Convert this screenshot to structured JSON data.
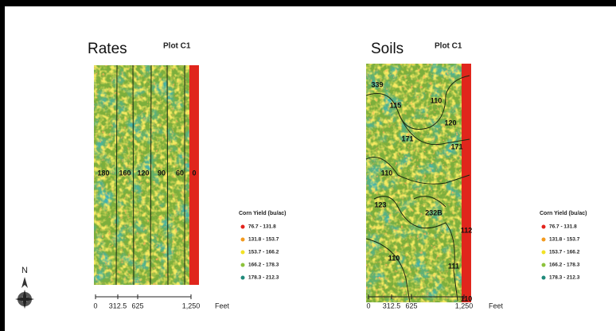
{
  "north": "N",
  "maps": [
    {
      "title": "Rates",
      "plot": "Plot C1",
      "zone_labels": [
        "180",
        "160",
        "120",
        "90",
        "60",
        "0"
      ],
      "scale": {
        "ticks": [
          "0",
          "312.5",
          "625",
          "1,250"
        ],
        "unit": "Feet"
      },
      "legend": {
        "title": "Corn Yield (bu/ac)",
        "items": [
          "76.7 - 131.8",
          "131.8 - 153.7",
          "153.7 - 166.2",
          "166.2 - 178.3",
          "178.3 - 212.3"
        ]
      }
    },
    {
      "title": "Soils",
      "plot": "Plot C1",
      "zone_labels": [
        "339",
        "115",
        "110",
        "120",
        "171",
        "171",
        "110",
        "123",
        "232B",
        "112",
        "110",
        "111",
        "110"
      ],
      "scale": {
        "ticks": [
          "0",
          "312.5",
          "625",
          "1,250"
        ],
        "unit": "Feet"
      },
      "legend": {
        "title": "Corn Yield (bu/ac)",
        "items": [
          "76.7 - 131.8",
          "131.8 - 153.7",
          "153.7 - 166.2",
          "166.2 - 178.3",
          "178.3 - 212.3"
        ]
      }
    }
  ]
}
